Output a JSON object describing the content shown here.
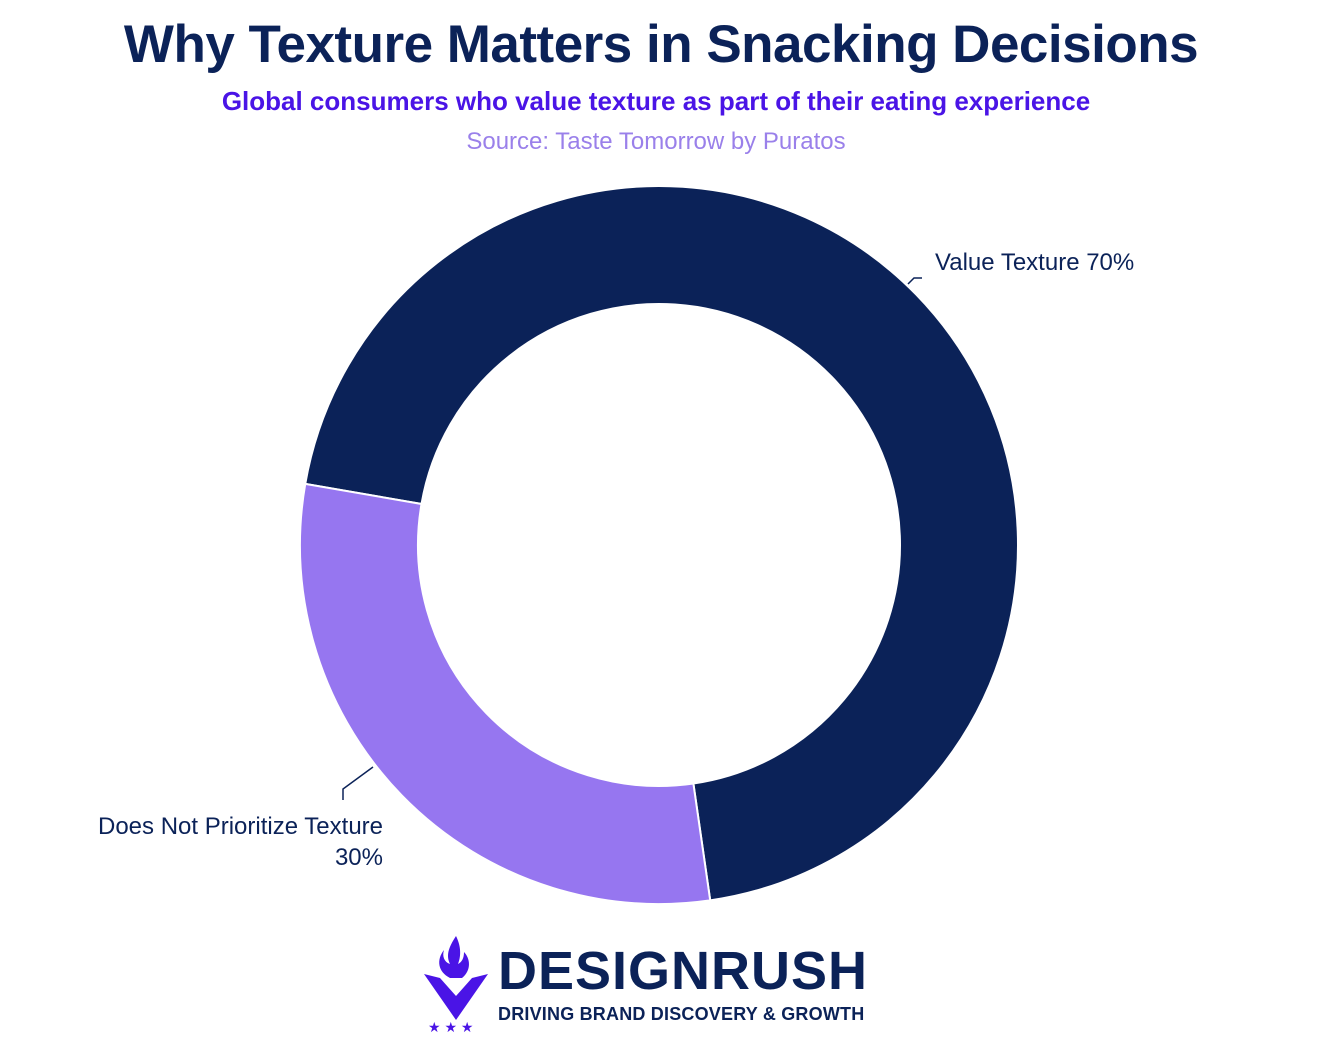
{
  "chart_data": {
    "type": "pie",
    "variant": "donut",
    "title": "Why Texture Matters in Snacking Decisions",
    "subtitle": "Global consumers who value texture as part of their eating experience",
    "source": "Source: Taste Tomorrow by Puratos",
    "slices": [
      {
        "name": "Value Texture",
        "value": 70,
        "label_line1": "Value Texture 70%",
        "color": "#0b2258"
      },
      {
        "name": "Does Not Prioritize Texture",
        "value": 30,
        "label_line1": "Does Not Prioritize Texture",
        "label_line2": "30%",
        "color": "#9676f0"
      }
    ],
    "unit": "%"
  },
  "logo": {
    "brand": "DESIGNRUSH",
    "tagline": "DRIVING BRAND DISCOVERY & GROWTH",
    "accent": "#4a14e6"
  }
}
